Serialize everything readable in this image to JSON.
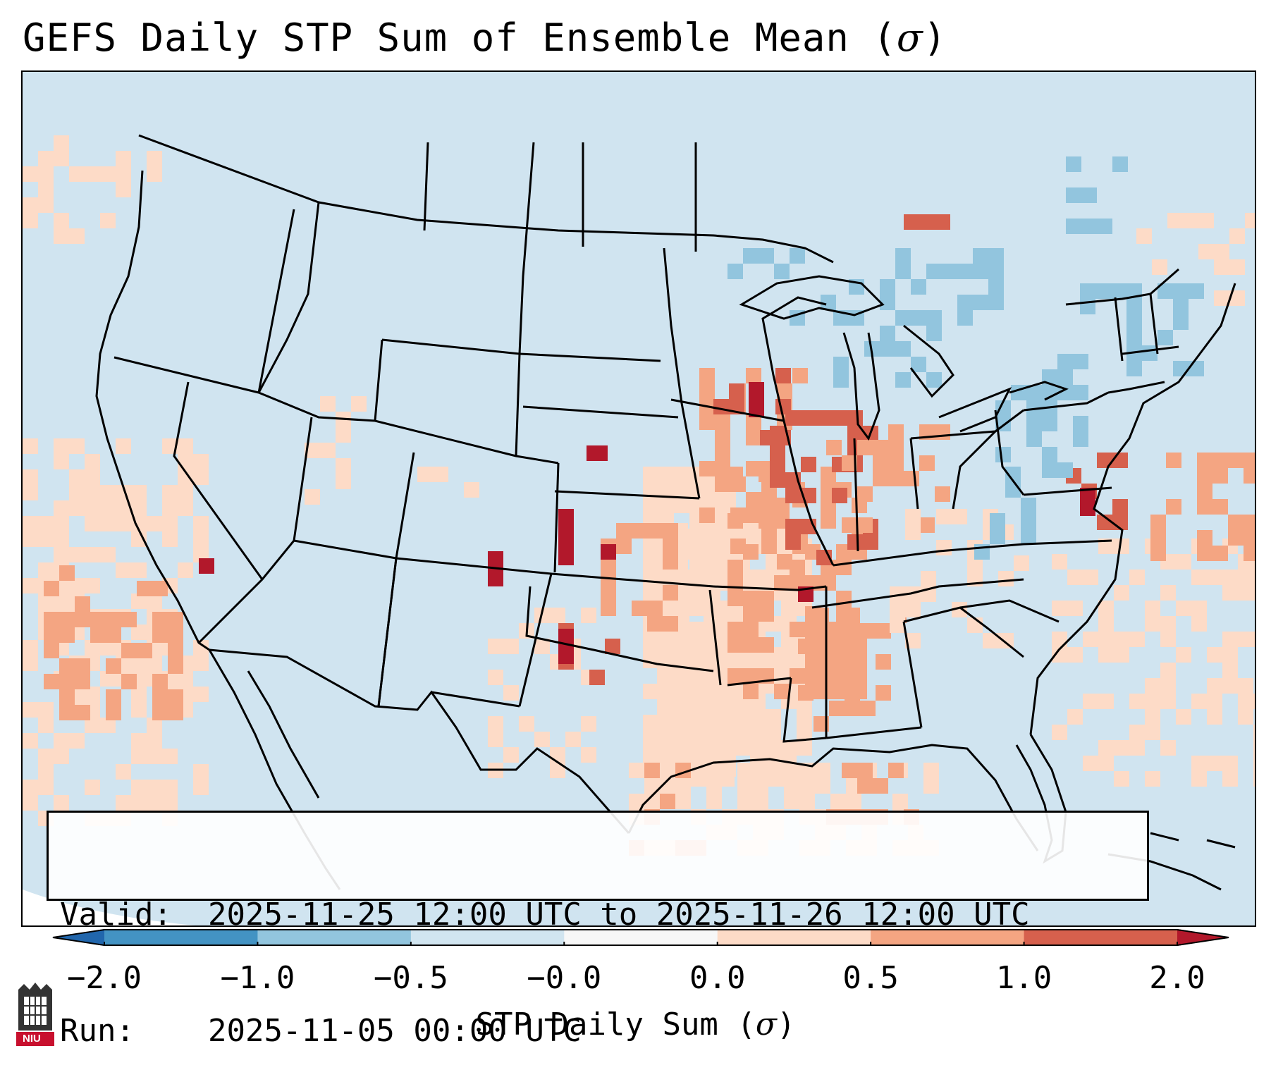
{
  "title": {
    "prefix": "GEFS Daily STP Sum of Ensemble Mean (",
    "sigma": "σ",
    "suffix": ")"
  },
  "info": {
    "valid_key": "Valid:",
    "valid_value": "2025-11-25 12:00 UTC to 2025-11-26 12:00 UTC",
    "run_key": "Run:",
    "run_value": "2025-11-05 00:00 UTC"
  },
  "colorbar": {
    "label_prefix": "STP Daily Sum (",
    "label_sigma": "σ",
    "label_suffix": ")",
    "ticks": [
      "−2.0",
      "−1.0",
      "−0.5",
      "−0.0",
      "0.0",
      "0.5",
      "1.0",
      "2.0"
    ],
    "colors": [
      "#4393c3",
      "#92c5de",
      "#d1e5f0",
      "#f7f7f7",
      "#fddbc7",
      "#f4a582",
      "#d6604d"
    ],
    "under_color": "#2166ac",
    "over_color": "#b2182b"
  },
  "map": {
    "background_color": "#d1e5f0",
    "region": "Contiguous United States"
  },
  "logo": {
    "text": "NIU"
  }
}
